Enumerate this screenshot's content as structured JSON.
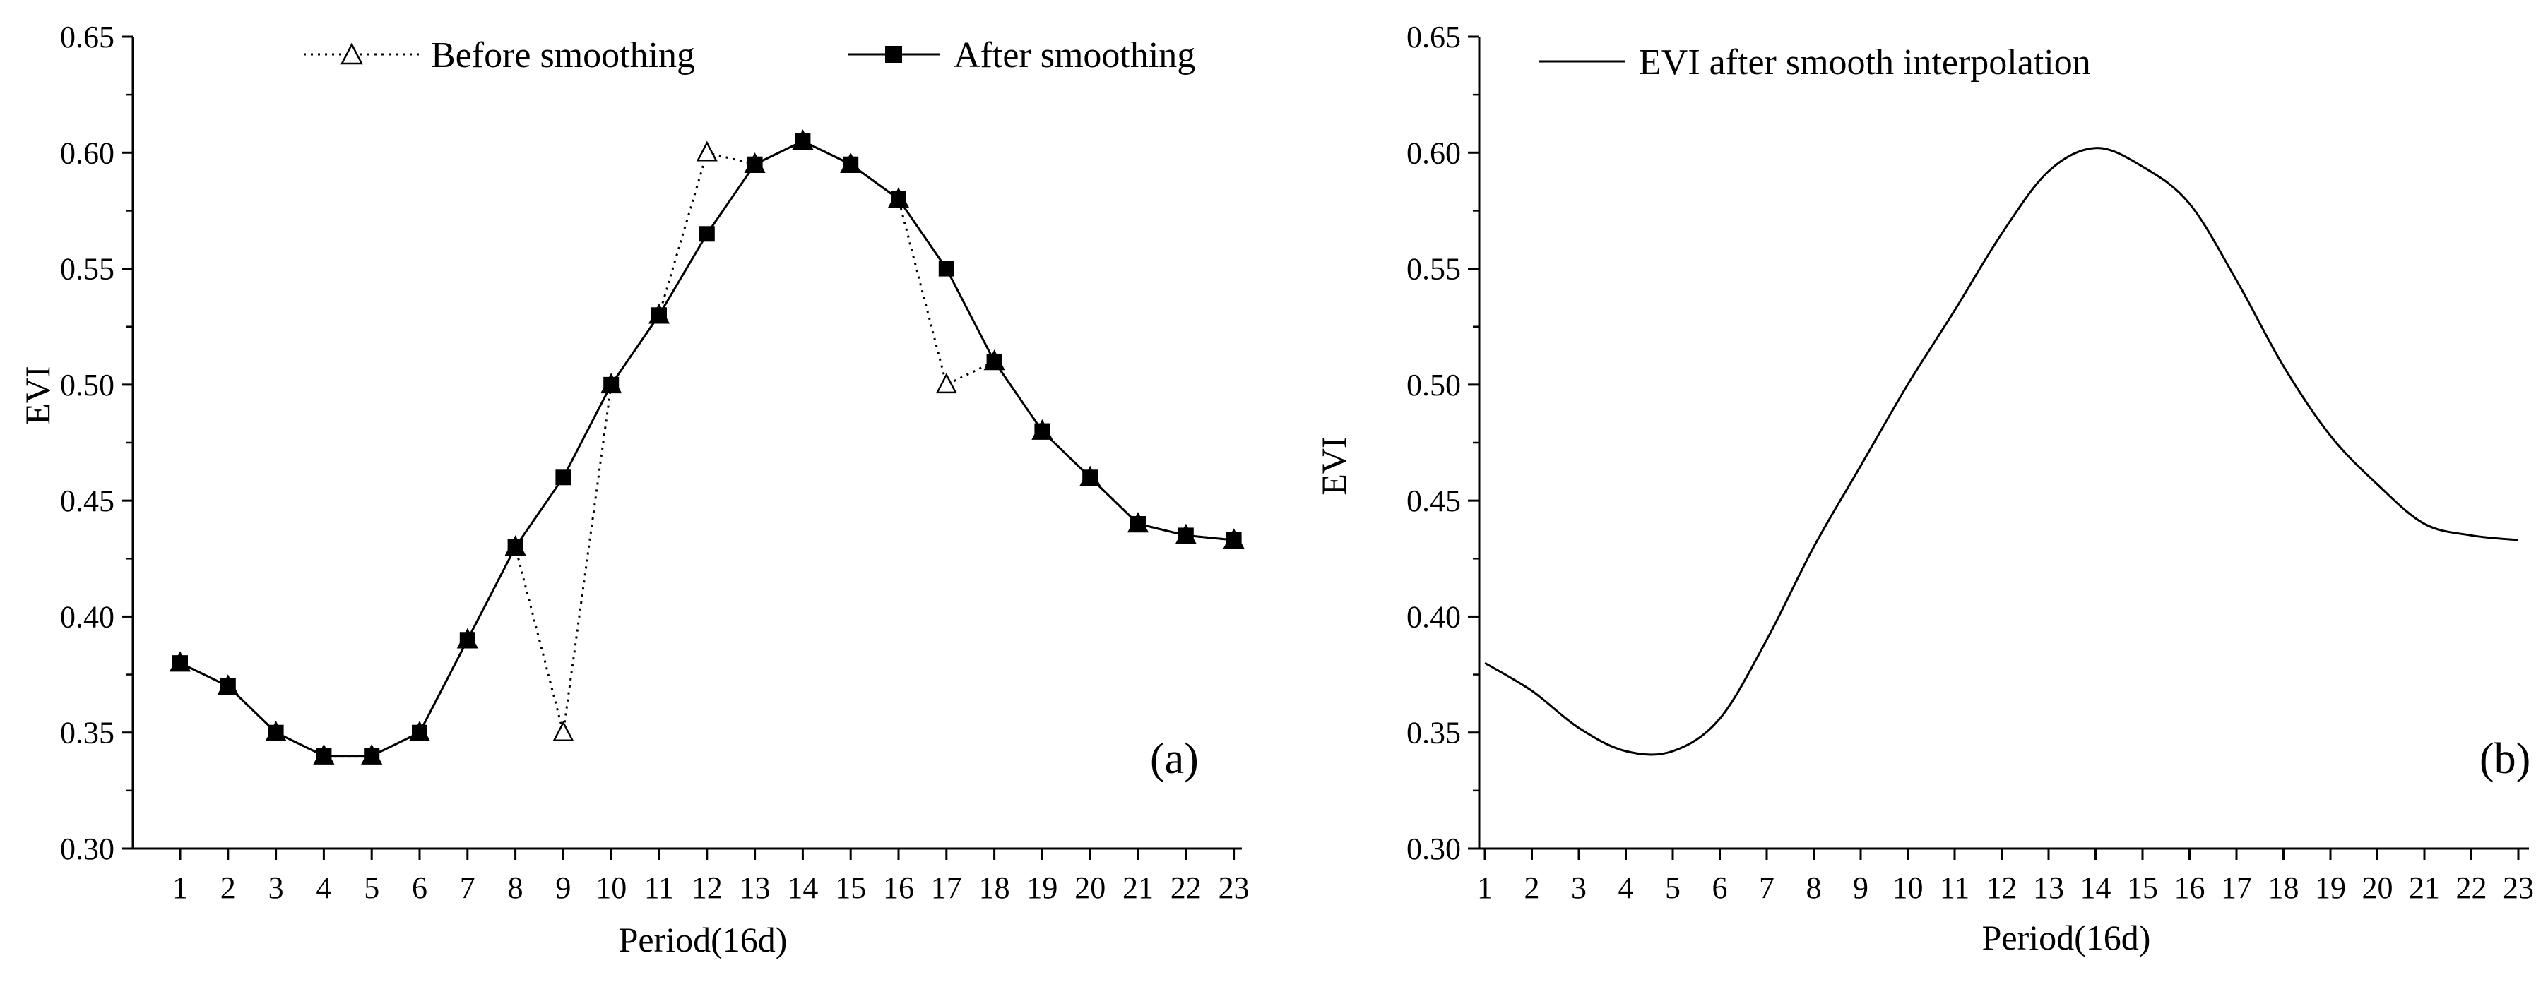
{
  "chart_data": [
    {
      "type": "line",
      "panel_label": "(a)",
      "xlabel": "Period(16d)",
      "ylabel": "EVI",
      "ylim": [
        0.3,
        0.65
      ],
      "y_ticks": [
        "0.30",
        "0.35",
        "0.40",
        "0.45",
        "0.50",
        "0.55",
        "0.60",
        "0.65"
      ],
      "x": [
        1,
        2,
        3,
        4,
        5,
        6,
        7,
        8,
        9,
        10,
        11,
        12,
        13,
        14,
        15,
        16,
        17,
        18,
        19,
        20,
        21,
        22,
        23
      ],
      "grid": false,
      "legend_position": "top",
      "series": [
        {
          "name": "Before smoothing",
          "marker": "open-triangle",
          "line_style": "dotted",
          "values": [
            0.38,
            0.37,
            0.35,
            0.34,
            0.34,
            0.35,
            0.39,
            0.43,
            0.35,
            0.5,
            0.53,
            0.6,
            0.595,
            0.605,
            0.595,
            0.58,
            0.5,
            0.51,
            0.48,
            0.46,
            0.44,
            0.435,
            0.433
          ]
        },
        {
          "name": "After smoothing",
          "marker": "filled-square",
          "line_style": "solid",
          "values": [
            0.38,
            0.37,
            0.35,
            0.34,
            0.34,
            0.35,
            0.39,
            0.43,
            0.46,
            0.5,
            0.53,
            0.565,
            0.595,
            0.605,
            0.595,
            0.58,
            0.55,
            0.51,
            0.48,
            0.46,
            0.44,
            0.435,
            0.433
          ]
        }
      ]
    },
    {
      "type": "line",
      "panel_label": "(b)",
      "xlabel": "Period(16d)",
      "ylabel": "EVI",
      "ylim": [
        0.3,
        0.65
      ],
      "y_ticks": [
        "0.30",
        "0.35",
        "0.40",
        "0.45",
        "0.50",
        "0.55",
        "0.60",
        "0.65"
      ],
      "x": [
        1,
        2,
        3,
        4,
        5,
        6,
        7,
        8,
        9,
        10,
        11,
        12,
        13,
        14,
        15,
        16,
        17,
        18,
        19,
        20,
        21,
        22,
        23
      ],
      "grid": false,
      "legend_position": "top-left",
      "series": [
        {
          "name": "EVI after smooth interpolation",
          "marker": "none",
          "line_style": "solid",
          "curve": "smooth",
          "values": [
            0.38,
            0.368,
            0.352,
            0.342,
            0.342,
            0.356,
            0.39,
            0.43,
            0.465,
            0.5,
            0.532,
            0.565,
            0.592,
            0.602,
            0.594,
            0.578,
            0.545,
            0.508,
            0.478,
            0.457,
            0.44,
            0.435,
            0.433
          ]
        }
      ]
    }
  ]
}
